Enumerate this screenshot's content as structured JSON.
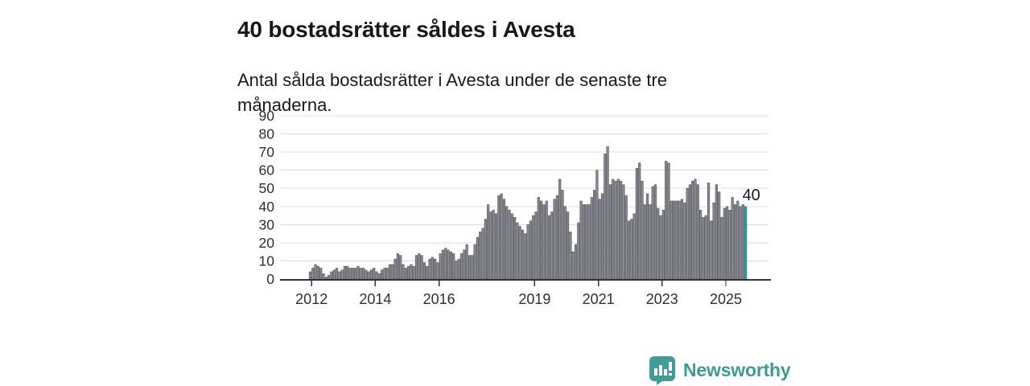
{
  "header": {
    "title": "40 bostadsrätter såldes i Avesta",
    "subtitle": "Antal sålda bostadsrätter i Avesta under de senaste tre månaderna."
  },
  "chart_data": {
    "type": "bar",
    "title": "40 bostadsrätter såldes i Avesta",
    "subtitle": "Antal sålda bostadsrätter i Avesta under de senaste tre månaderna.",
    "frequency": "monthly",
    "x_start": "2011-12",
    "x_end": "2025-08",
    "xlabel": "",
    "ylabel": "",
    "ylim": [
      0,
      90
    ],
    "grid": true,
    "y_ticks": [
      0,
      10,
      20,
      30,
      40,
      50,
      60,
      70,
      80,
      90
    ],
    "x_tick_years": [
      2012,
      2014,
      2016,
      2019,
      2021,
      2023,
      2025
    ],
    "values": [
      4,
      6,
      8,
      7,
      6,
      3,
      1,
      2,
      4,
      5,
      6,
      4,
      5,
      7,
      7,
      6,
      6,
      6,
      7,
      6,
      6,
      5,
      4,
      5,
      6,
      4,
      3,
      5,
      6,
      6,
      8,
      8,
      11,
      14,
      13,
      8,
      6,
      7,
      8,
      7,
      13,
      14,
      13,
      9,
      7,
      11,
      12,
      11,
      9,
      14,
      16,
      17,
      16,
      15,
      14,
      10,
      11,
      14,
      16,
      19,
      13,
      13,
      19,
      23,
      26,
      28,
      33,
      41,
      37,
      38,
      36,
      46,
      47,
      44,
      40,
      38,
      36,
      34,
      31,
      29,
      27,
      25,
      30,
      32,
      35,
      37,
      45,
      43,
      41,
      43,
      35,
      37,
      44,
      46,
      55,
      49,
      40,
      37,
      26,
      15,
      19,
      31,
      43,
      41,
      41,
      41,
      45,
      49,
      60,
      44,
      47,
      69,
      73,
      52,
      55,
      54,
      55,
      54,
      52,
      46,
      32,
      33,
      36,
      61,
      64,
      54,
      41,
      47,
      41,
      51,
      52,
      39,
      35,
      38,
      65,
      64,
      43,
      43,
      43,
      43,
      44,
      42,
      50,
      52,
      54,
      55,
      52,
      38,
      34,
      35,
      53,
      32,
      42,
      52,
      48,
      34,
      39,
      40,
      38,
      45,
      41,
      43,
      40,
      41,
      40
    ],
    "highlight": {
      "index": 164,
      "value": 40,
      "label": "40",
      "color": "#14a09c"
    },
    "bar_color": "#8a8a91",
    "bar_edge_color": "#5a5a62",
    "grid_color": "#dcdcdf",
    "axis_color": "#32323a",
    "tick_label_color": "#2e2e33",
    "annotation_color": "#15181c"
  },
  "footer": {
    "brand": "Newsworthy",
    "brand_color": "#3d9a94",
    "logo_icon": "bar-chart-speech-bubble-icon",
    "logo_color": "#3f9d97"
  }
}
